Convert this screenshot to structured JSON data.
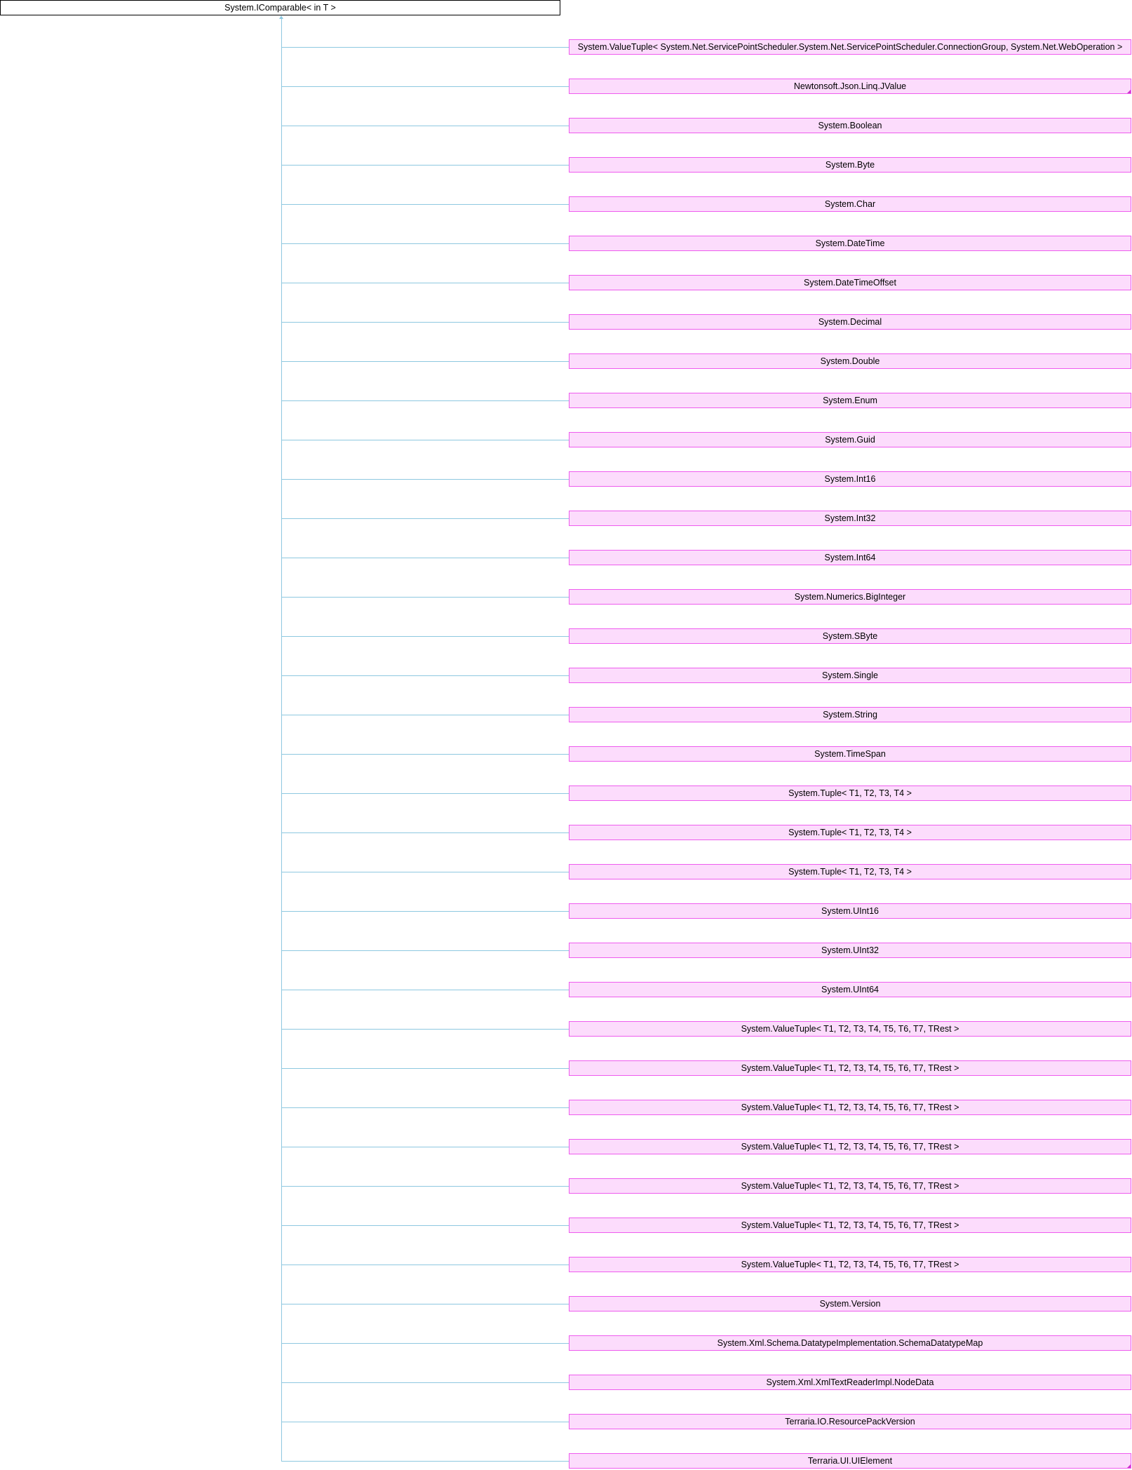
{
  "root": {
    "label": "System.IComparable< in T >"
  },
  "children": [
    {
      "label": "System.ValueTuple< System.Net.ServicePointScheduler.System.Net.ServicePointScheduler.ConnectionGroup, System.Net.WebOperation >",
      "truncated": false
    },
    {
      "label": "Newtonsoft.Json.Linq.JValue",
      "truncated": true
    },
    {
      "label": "System.Boolean",
      "truncated": false
    },
    {
      "label": "System.Byte",
      "truncated": false
    },
    {
      "label": "System.Char",
      "truncated": false
    },
    {
      "label": "System.DateTime",
      "truncated": false
    },
    {
      "label": "System.DateTimeOffset",
      "truncated": false
    },
    {
      "label": "System.Decimal",
      "truncated": false
    },
    {
      "label": "System.Double",
      "truncated": false
    },
    {
      "label": "System.Enum",
      "truncated": false
    },
    {
      "label": "System.Guid",
      "truncated": false
    },
    {
      "label": "System.Int16",
      "truncated": false
    },
    {
      "label": "System.Int32",
      "truncated": false
    },
    {
      "label": "System.Int64",
      "truncated": false
    },
    {
      "label": "System.Numerics.BigInteger",
      "truncated": false
    },
    {
      "label": "System.SByte",
      "truncated": false
    },
    {
      "label": "System.Single",
      "truncated": false
    },
    {
      "label": "System.String",
      "truncated": false
    },
    {
      "label": "System.TimeSpan",
      "truncated": false
    },
    {
      "label": "System.Tuple< T1, T2, T3, T4 >",
      "truncated": false
    },
    {
      "label": "System.Tuple< T1, T2, T3, T4 >",
      "truncated": false
    },
    {
      "label": "System.Tuple< T1, T2, T3, T4 >",
      "truncated": false
    },
    {
      "label": "System.UInt16",
      "truncated": false
    },
    {
      "label": "System.UInt32",
      "truncated": false
    },
    {
      "label": "System.UInt64",
      "truncated": false
    },
    {
      "label": "System.ValueTuple< T1, T2, T3, T4, T5, T6, T7, TRest >",
      "truncated": false
    },
    {
      "label": "System.ValueTuple< T1, T2, T3, T4, T5, T6, T7, TRest >",
      "truncated": false
    },
    {
      "label": "System.ValueTuple< T1, T2, T3, T4, T5, T6, T7, TRest >",
      "truncated": false
    },
    {
      "label": "System.ValueTuple< T1, T2, T3, T4, T5, T6, T7, TRest >",
      "truncated": false
    },
    {
      "label": "System.ValueTuple< T1, T2, T3, T4, T5, T6, T7, TRest >",
      "truncated": false
    },
    {
      "label": "System.ValueTuple< T1, T2, T3, T4, T5, T6, T7, TRest >",
      "truncated": false
    },
    {
      "label": "System.ValueTuple< T1, T2, T3, T4, T5, T6, T7, TRest >",
      "truncated": false
    },
    {
      "label": "System.Version",
      "truncated": false
    },
    {
      "label": "System.Xml.Schema.DatatypeImplementation.SchemaDatatypeMap",
      "truncated": false
    },
    {
      "label": "System.Xml.XmlTextReaderImpl.NodeData",
      "truncated": false
    },
    {
      "label": "Terraria.IO.ResourcePackVersion",
      "truncated": false
    },
    {
      "label": "Terraria.UI.UIElement",
      "truncated": true
    }
  ],
  "colors": {
    "root_border": "#000000",
    "root_fill": "#ffffff",
    "child_border": "#ee5cee",
    "child_fill": "#fcdcfc",
    "edge": "#8ec8e0"
  }
}
